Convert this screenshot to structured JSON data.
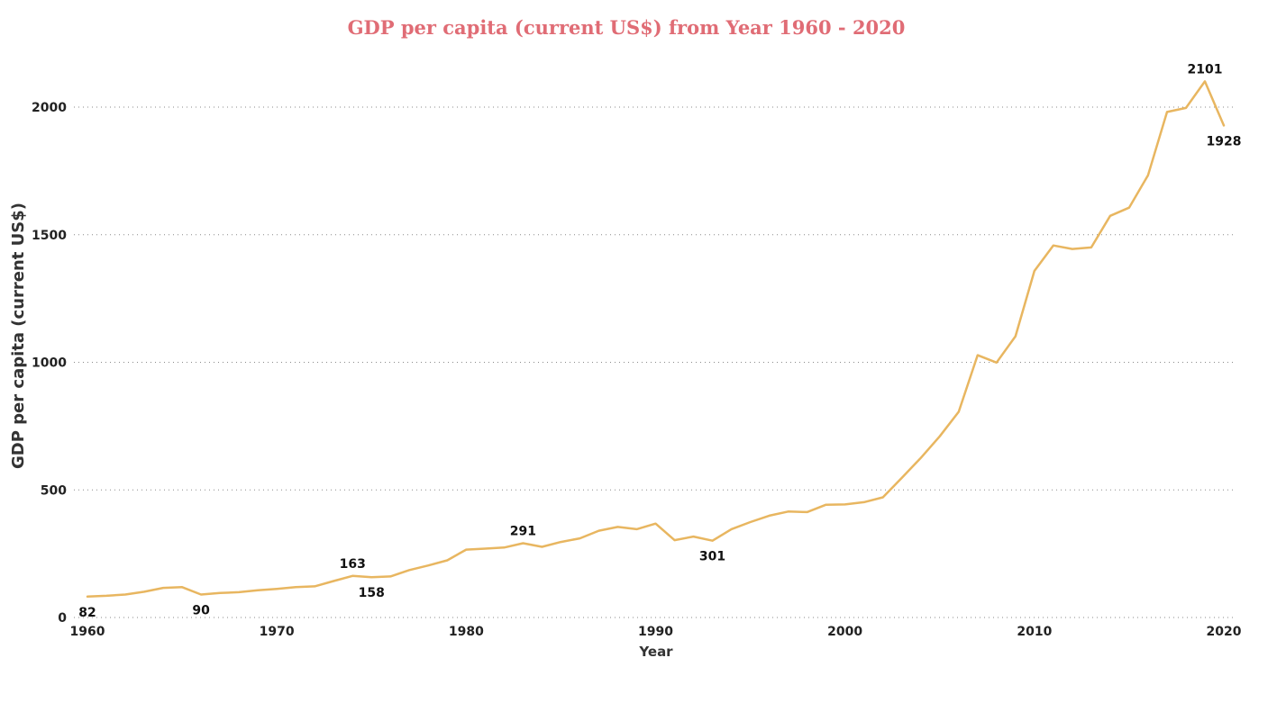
{
  "chart_data": {
    "type": "line",
    "title": "GDP per capita (current US$) from Year 1960 - 2020",
    "xlabel": "Year",
    "ylabel": "GDP per capita (current US$)",
    "xlim": [
      1960,
      2020
    ],
    "ylim": [
      0,
      2000
    ],
    "x_ticks": [
      1960,
      1970,
      1980,
      1990,
      2000,
      2010,
      2020
    ],
    "y_ticks": [
      0,
      500,
      1000,
      1500,
      2000
    ],
    "grid": "horizontal dotted",
    "series": [
      {
        "color": "#e8b660",
        "x": [
          1960,
          1961,
          1962,
          1963,
          1964,
          1965,
          1966,
          1967,
          1968,
          1969,
          1970,
          1971,
          1972,
          1973,
          1974,
          1975,
          1976,
          1977,
          1978,
          1979,
          1980,
          1981,
          1982,
          1983,
          1984,
          1985,
          1986,
          1987,
          1988,
          1989,
          1990,
          1991,
          1992,
          1993,
          1994,
          1995,
          1996,
          1997,
          1998,
          1999,
          2000,
          2001,
          2002,
          2003,
          2004,
          2005,
          2006,
          2007,
          2008,
          2009,
          2010,
          2011,
          2012,
          2013,
          2014,
          2015,
          2016,
          2017,
          2018,
          2019,
          2020
        ],
        "values": [
          82,
          85,
          90,
          101,
          116,
          119,
          90,
          96,
          99,
          107,
          112,
          119,
          122,
          143,
          163,
          158,
          161,
          186,
          204,
          224,
          266,
          270,
          274,
          291,
          277,
          296,
          310,
          340,
          355,
          346,
          368,
          303,
          317,
          301,
          346,
          374,
          399,
          415,
          413,
          442,
          443,
          452,
          471,
          547,
          625,
          710,
          806,
          1028,
          999,
          1102,
          1358,
          1458,
          1444,
          1450,
          1574,
          1606,
          1733,
          1981,
          1997,
          2101,
          1928
        ]
      }
    ],
    "data_labels": [
      {
        "x": 1960,
        "value": 82,
        "text": "82",
        "pos": "below"
      },
      {
        "x": 1966,
        "value": 90,
        "text": "90",
        "pos": "below"
      },
      {
        "x": 1974,
        "value": 163,
        "text": "163",
        "pos": "above"
      },
      {
        "x": 1975,
        "value": 158,
        "text": "158",
        "pos": "below"
      },
      {
        "x": 1983,
        "value": 291,
        "text": "291",
        "pos": "above"
      },
      {
        "x": 1993,
        "value": 301,
        "text": "301",
        "pos": "below"
      },
      {
        "x": 2019,
        "value": 2101,
        "text": "2101",
        "pos": "above"
      },
      {
        "x": 2020,
        "value": 1928,
        "text": "1928",
        "pos": "below"
      }
    ]
  }
}
